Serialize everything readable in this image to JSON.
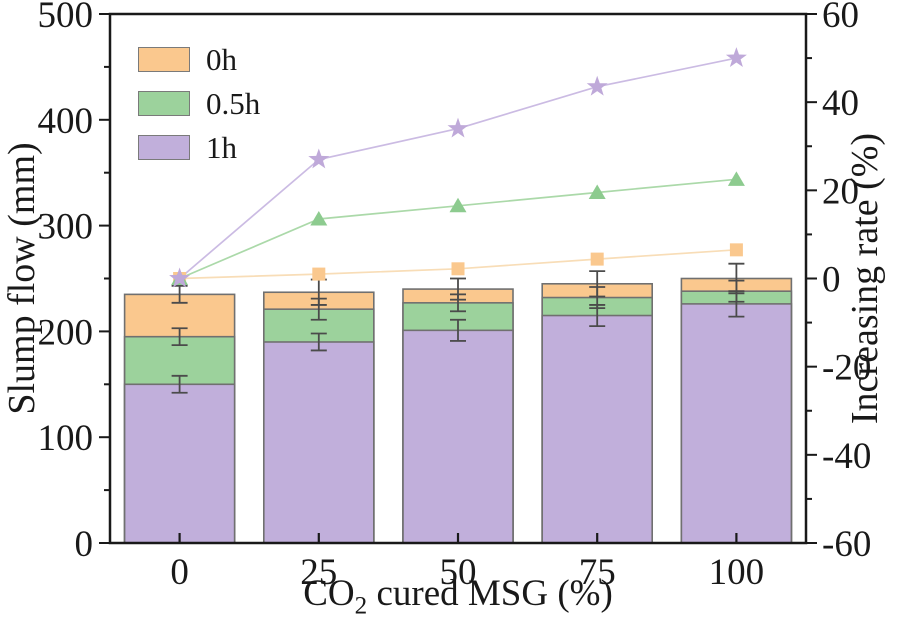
{
  "chart_data": {
    "type": "bar+line-dual-axis",
    "categories": [
      "0",
      "25",
      "50",
      "75",
      "100"
    ],
    "xlabel_pre": "CO",
    "xlabel_sub": "2",
    "xlabel_post": " cured MSG (%)",
    "left_axis": {
      "label": "Slump flow (mm)",
      "min": 0,
      "max": 500,
      "major_step": 100,
      "minor_step": 50,
      "ticks": [
        "0",
        "100",
        "200",
        "300",
        "400",
        "500"
      ]
    },
    "right_axis": {
      "label": "Increasing rate (%)",
      "min": -60,
      "max": 60,
      "major_step": 20,
      "minor_step": 10,
      "ticks": [
        "-60",
        "-40",
        "-20",
        "0",
        "20",
        "40",
        "60"
      ]
    },
    "legend_position": "top-left",
    "grid": false,
    "bar_series": [
      {
        "name": "0h",
        "color": "#FAC88E",
        "values": [
          235,
          237,
          240,
          245,
          250
        ],
        "errors": [
          8,
          12,
          10,
          12,
          14
        ]
      },
      {
        "name": "0.5h",
        "color": "#9CD29C",
        "values": [
          195,
          221,
          227,
          232,
          238
        ],
        "errors": [
          8,
          10,
          8,
          10,
          10
        ]
      },
      {
        "name": "1h",
        "color": "#C1AFDB",
        "values": [
          150,
          190,
          201,
          215,
          226
        ],
        "errors": [
          8,
          8,
          10,
          10,
          12
        ]
      }
    ],
    "line_series": [
      {
        "name": "0h",
        "marker": "square",
        "marker_color": "#FAC88E",
        "line_color": "#F8DDB7",
        "values": [
          0,
          1.0,
          2.2,
          4.4,
          6.5
        ]
      },
      {
        "name": "0.5h",
        "marker": "triangle",
        "marker_color": "#8DCB8F",
        "line_color": "#ABD9A9",
        "values": [
          0,
          13.5,
          16.5,
          19.5,
          22.5
        ]
      },
      {
        "name": "1h",
        "marker": "star",
        "marker_color": "#BFA9D9",
        "line_color": "#CBBBE3",
        "values": [
          0,
          27,
          34,
          43.5,
          50
        ]
      }
    ],
    "style": {
      "bar_edge_color": "#707070",
      "error_bar_color": "#4b4b4b",
      "axis_color": "#191919",
      "text_color": "#191919"
    }
  }
}
